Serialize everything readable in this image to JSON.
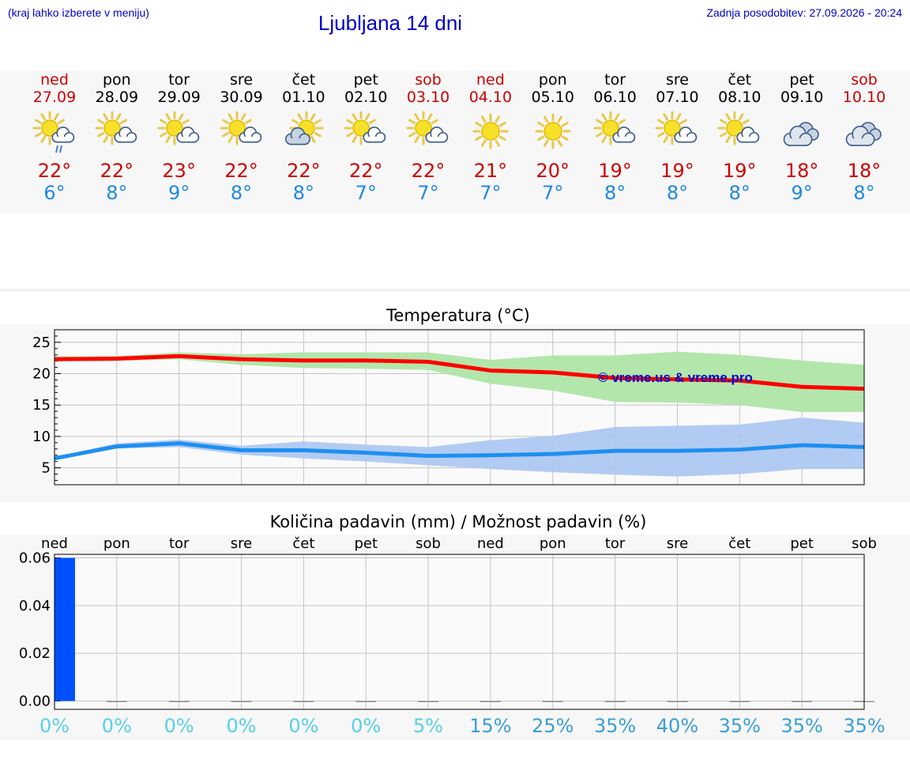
{
  "header": {
    "hint": "(kraj lahko izberete v meniju)",
    "title": "Ljubljana 14 dni",
    "updated": "Zadnja posodobitev: 27.09.2026 - 20:24"
  },
  "days": [
    {
      "name": "ned",
      "date": "27.09",
      "weekend": true,
      "icon": "sun-cloud-rain-icon",
      "tmax": "22°",
      "tmin": "6°"
    },
    {
      "name": "pon",
      "date": "28.09",
      "weekend": false,
      "icon": "sun-cloud-icon",
      "tmax": "22°",
      "tmin": "8°"
    },
    {
      "name": "tor",
      "date": "29.09",
      "weekend": false,
      "icon": "sun-cloud-icon",
      "tmax": "23°",
      "tmin": "9°"
    },
    {
      "name": "sre",
      "date": "30.09",
      "weekend": false,
      "icon": "sun-cloud-icon",
      "tmax": "22°",
      "tmin": "8°"
    },
    {
      "name": "čet",
      "date": "01.10",
      "weekend": false,
      "icon": "cloud-sun-icon",
      "tmax": "22°",
      "tmin": "8°"
    },
    {
      "name": "pet",
      "date": "02.10",
      "weekend": false,
      "icon": "sun-cloud-icon",
      "tmax": "22°",
      "tmin": "7°"
    },
    {
      "name": "sob",
      "date": "03.10",
      "weekend": true,
      "icon": "sun-cloud-icon",
      "tmax": "22°",
      "tmin": "7°"
    },
    {
      "name": "ned",
      "date": "04.10",
      "weekend": true,
      "icon": "sun-icon",
      "tmax": "21°",
      "tmin": "7°"
    },
    {
      "name": "pon",
      "date": "05.10",
      "weekend": false,
      "icon": "sun-icon",
      "tmax": "20°",
      "tmin": "7°"
    },
    {
      "name": "tor",
      "date": "06.10",
      "weekend": false,
      "icon": "sun-cloud-icon",
      "tmax": "19°",
      "tmin": "8°"
    },
    {
      "name": "sre",
      "date": "07.10",
      "weekend": false,
      "icon": "sun-cloud-icon",
      "tmax": "19°",
      "tmin": "8°"
    },
    {
      "name": "čet",
      "date": "08.10",
      "weekend": false,
      "icon": "sun-cloud-icon",
      "tmax": "19°",
      "tmin": "8°"
    },
    {
      "name": "pet",
      "date": "09.10",
      "weekend": false,
      "icon": "cloudy-icon",
      "tmax": "18°",
      "tmin": "9°"
    },
    {
      "name": "sob",
      "date": "10.10",
      "weekend": true,
      "icon": "cloudy-icon",
      "tmax": "18°",
      "tmin": "8°"
    }
  ],
  "chart_data": [
    {
      "type": "line",
      "title": "Temperatura (°C)",
      "watermark": "© vreme.us & vreme.pro",
      "x": [
        0,
        1,
        2,
        3,
        4,
        5,
        6,
        7,
        8,
        9,
        10,
        11,
        12,
        13
      ],
      "yticks": [
        "5",
        "10",
        "15",
        "20",
        "25"
      ],
      "ylim": [
        2.3,
        27
      ],
      "grid": true,
      "series": [
        {
          "color": "#ff0000",
          "values": [
            22.3,
            22.4,
            22.8,
            22.3,
            22.1,
            22.1,
            21.9,
            20.5,
            20.2,
            19.3,
            19.1,
            18.9,
            17.9,
            17.6
          ],
          "band_low": [
            22.0,
            22.0,
            22.3,
            21.4,
            20.9,
            20.8,
            20.6,
            18.4,
            17.3,
            15.5,
            15.4,
            15.0,
            13.9,
            13.9
          ],
          "band_high": [
            22.8,
            22.8,
            23.4,
            23.1,
            23.4,
            23.4,
            23.4,
            22.2,
            22.9,
            22.9,
            23.5,
            23.0,
            22.1,
            21.4
          ],
          "band_color": "#aee5a6"
        },
        {
          "color": "#1e8ff0",
          "values": [
            6.5,
            8.4,
            8.9,
            7.8,
            7.8,
            7.4,
            6.9,
            7.0,
            7.2,
            7.7,
            7.7,
            7.9,
            8.6,
            8.3
          ],
          "band_low": [
            6.3,
            8.1,
            8.3,
            7.1,
            6.5,
            6.0,
            5.4,
            4.8,
            4.3,
            3.9,
            3.6,
            4.0,
            4.8,
            4.8
          ],
          "band_high": [
            6.7,
            8.9,
            9.5,
            8.5,
            9.2,
            8.7,
            8.3,
            9.4,
            10.1,
            11.5,
            11.7,
            11.9,
            13.0,
            12.2
          ],
          "band_color": "#aec8f2"
        }
      ]
    },
    {
      "type": "bar",
      "title": "Količina padavin (mm) / Možnost padavin (%)",
      "categories": [
        "ned",
        "pon",
        "tor",
        "sre",
        "čet",
        "pet",
        "sob",
        "ned",
        "pon",
        "tor",
        "sre",
        "čet",
        "pet",
        "sob"
      ],
      "values": [
        0.06,
        0,
        0,
        0,
        0,
        0,
        0,
        0,
        0,
        0,
        0,
        0,
        0,
        0
      ],
      "yticks": [
        "0.00",
        "0.02",
        "0.04",
        "0.06"
      ],
      "ylim": [
        -0.0035,
        0.0615
      ],
      "bar_color": "#0050ff",
      "probability": [
        "0%",
        "0%",
        "0%",
        "0%",
        "0%",
        "0%",
        "5%",
        "15%",
        "25%",
        "35%",
        "40%",
        "35%",
        "35%",
        "35%"
      ],
      "probability_colors": [
        "#55d0e8",
        "#55d0e8",
        "#55d0e8",
        "#55d0e8",
        "#55d0e8",
        "#55d0e8",
        "#55d0e8",
        "#3a9ed6",
        "#3a9ed6",
        "#3a9ed6",
        "#3a9ed6",
        "#3a9ed6",
        "#3a9ed6",
        "#3a9ed6"
      ]
    }
  ]
}
